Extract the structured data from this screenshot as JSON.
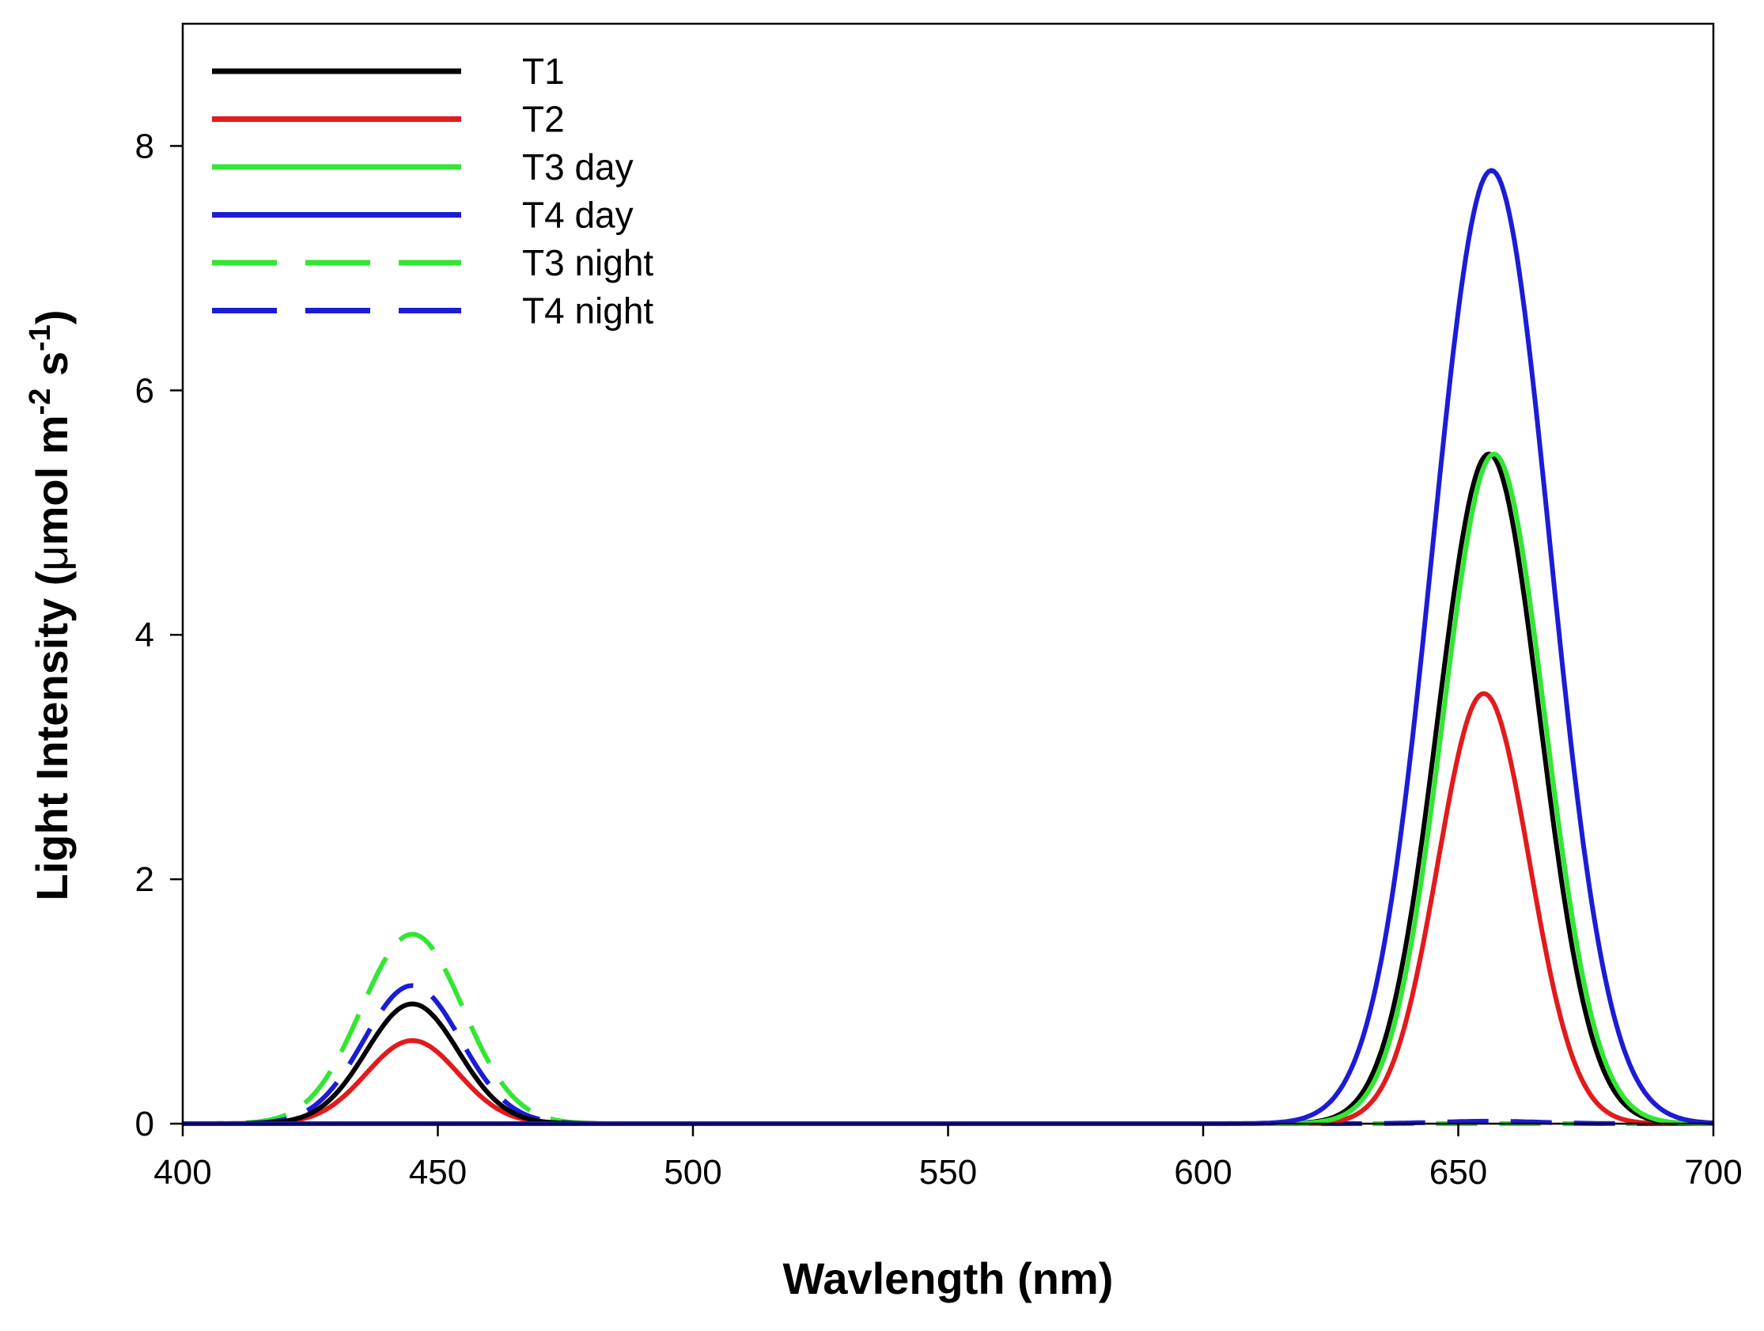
{
  "chart_data": {
    "type": "line",
    "title": "",
    "xlabel": "Wavlength (nm)",
    "ylabel": {
      "prefix": "Light Intensity (",
      "mu": "μ",
      "mol": "mol m",
      "exp1": "-2",
      "s": " s",
      "exp2": "-1",
      "suffix": ")"
    },
    "xlim": [
      400,
      700
    ],
    "ylim": [
      0,
      9
    ],
    "xticks": [
      400,
      450,
      500,
      550,
      600,
      650,
      700
    ],
    "yticks": [
      0,
      2,
      4,
      6,
      8
    ],
    "legend_position": "top-left",
    "series": [
      {
        "name": "T1",
        "color": "#000000",
        "dash": "solid",
        "peaks": [
          {
            "center": 445,
            "sigma": 9.0,
            "height": 0.98
          },
          {
            "center": 656,
            "sigma": 10.0,
            "height": 5.48
          }
        ]
      },
      {
        "name": "T2",
        "color": "#e31a1c",
        "dash": "solid",
        "peaks": [
          {
            "center": 445,
            "sigma": 9.0,
            "height": 0.68
          },
          {
            "center": 655,
            "sigma": 9.0,
            "height": 3.52
          }
        ]
      },
      {
        "name": "T3 day",
        "color": "#33e633",
        "dash": "solid",
        "peaks": [
          {
            "center": 657,
            "sigma": 10.0,
            "height": 5.48
          }
        ]
      },
      {
        "name": "T4 day",
        "color": "#1c1cd6",
        "dash": "solid",
        "peaks": [
          {
            "center": 656.5,
            "sigma": 11.5,
            "height": 7.8
          }
        ]
      },
      {
        "name": "T3 night",
        "color": "#33e633",
        "dash": "dashed",
        "peaks": [
          {
            "center": 445,
            "sigma": 10.0,
            "height": 1.55
          }
        ]
      },
      {
        "name": "T4 night",
        "color": "#1c1cd6",
        "dash": "dashed",
        "peaks": [
          {
            "center": 445,
            "sigma": 9.5,
            "height": 1.13
          },
          {
            "center": 656,
            "sigma": 10.0,
            "height": 0.02
          }
        ]
      }
    ]
  }
}
